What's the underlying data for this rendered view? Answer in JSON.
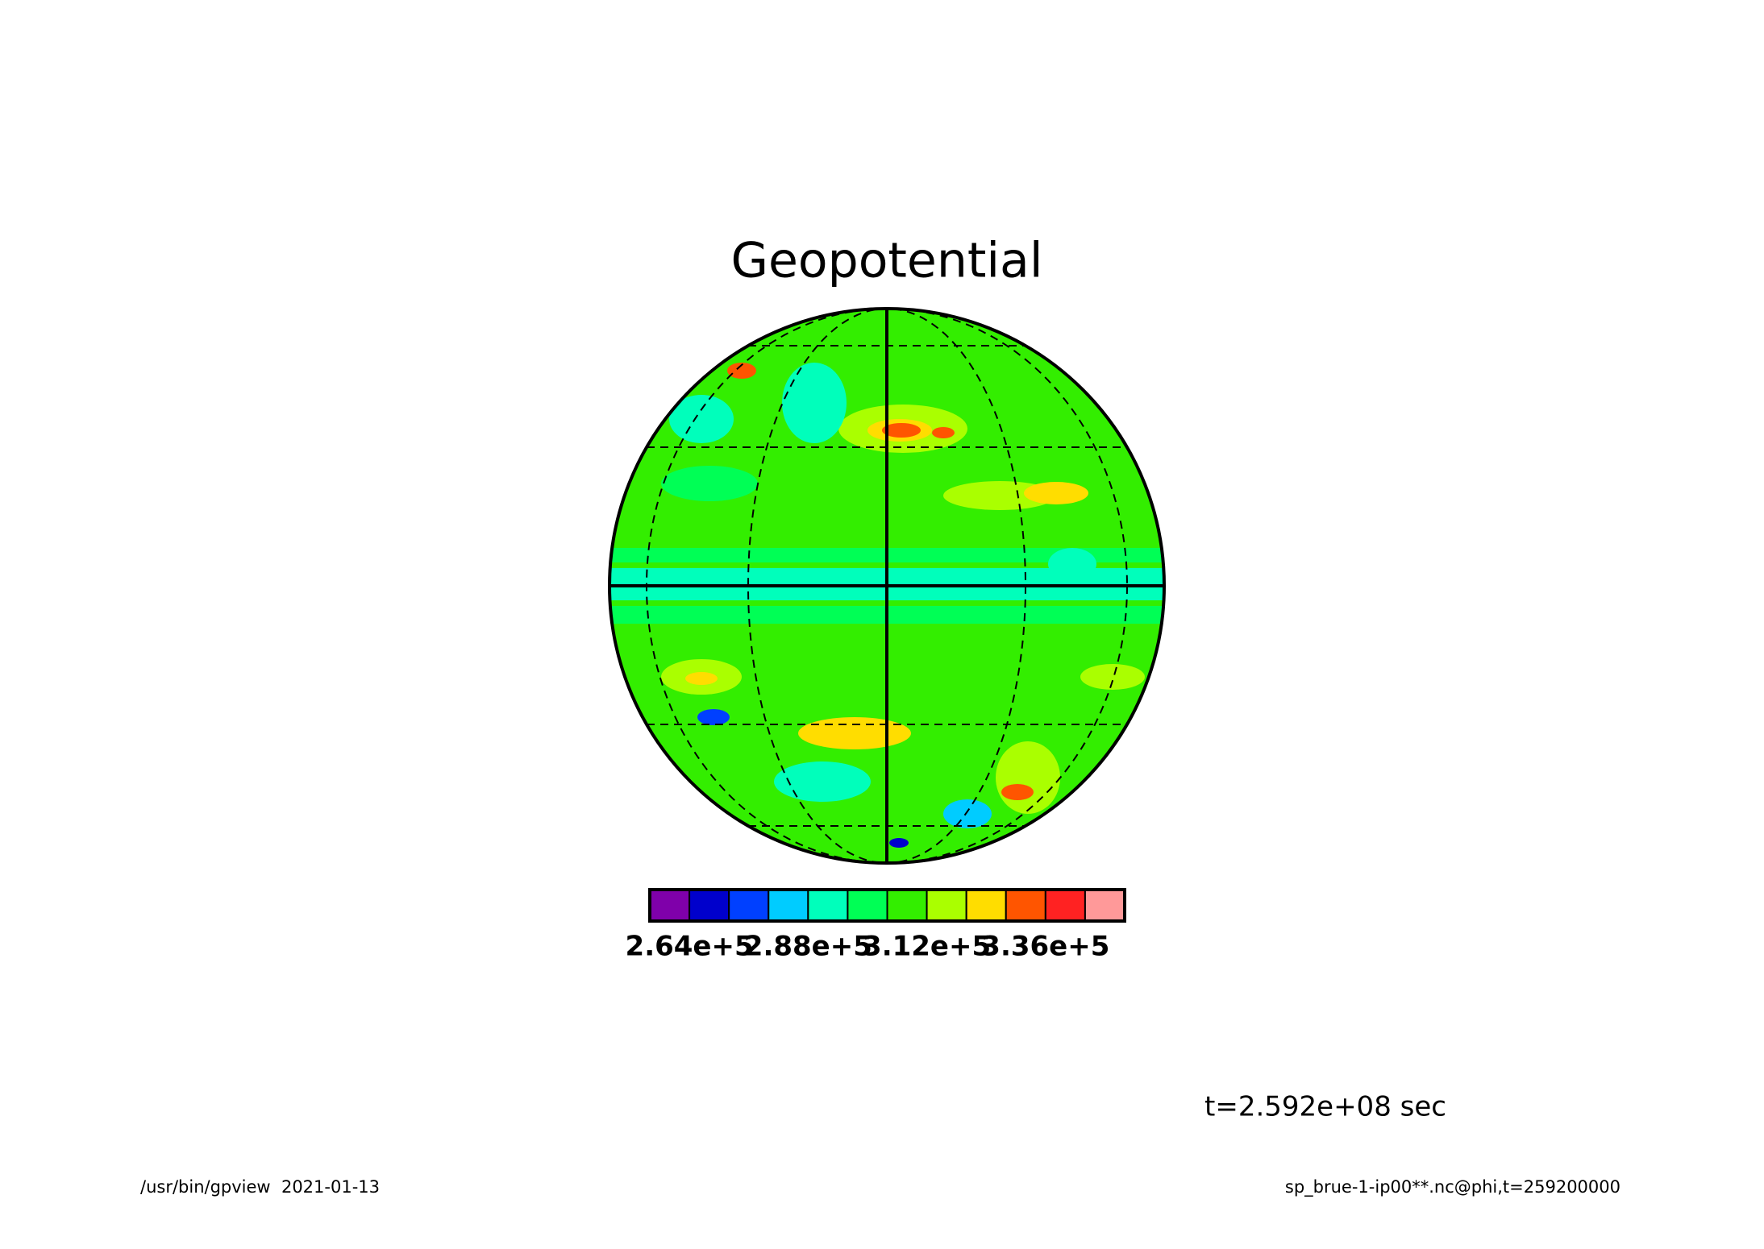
{
  "chart_data": {
    "type": "contour",
    "title": "Geopotential",
    "colorbar": {
      "colors": [
        "#7f00aa",
        "#0000cc",
        "#0040ff",
        "#00ccff",
        "#00ffbb",
        "#00ff55",
        "#33ee00",
        "#aaff00",
        "#ffdd00",
        "#ff5500",
        "#ff2222",
        "#ff9999"
      ],
      "lim": [
        256000,
        352000
      ],
      "ticks": [
        {
          "value": 264000,
          "label": "2.64e+5"
        },
        {
          "value": 288000,
          "label": "2.88e+5"
        },
        {
          "value": 312000,
          "label": "3.12e+5"
        },
        {
          "value": 336000,
          "label": "3.36e+5"
        }
      ]
    },
    "time_label": "t=2.592e+08 sec",
    "footer_left": "/usr/bin/gpview  2021-01-13",
    "footer_right": "sp_brue-1-ip00**.nc@phi,t=259200000"
  }
}
